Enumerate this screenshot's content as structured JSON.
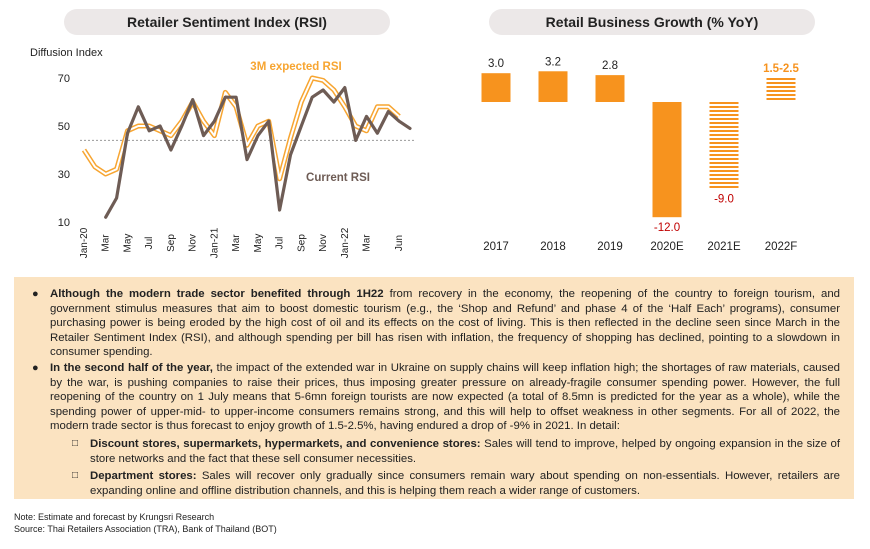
{
  "left_panel": {
    "title": "Retailer Sentiment Index (RSI)"
  },
  "right_panel": {
    "title": "Retail Business Growth (% YoY)"
  },
  "chart_data": [
    {
      "type": "line",
      "title": "Retailer Sentiment Index (RSI)",
      "ylabel": "Diffusion Index",
      "ylim": [
        10,
        75
      ],
      "yticks": [
        10,
        30,
        50,
        70
      ],
      "reference_line": 44,
      "x": [
        "Jan-20",
        "Feb-20",
        "Mar-20",
        "Apr-20",
        "May-20",
        "Jun-20",
        "Jul-20",
        "Aug-20",
        "Sep-20",
        "Oct-20",
        "Nov-20",
        "Dec-20",
        "Jan-21",
        "Feb-21",
        "Mar-21",
        "Apr-21",
        "May-21",
        "Jun-21",
        "Jul-21",
        "Aug-21",
        "Sep-21",
        "Oct-21",
        "Nov-21",
        "Dec-21",
        "Jan-22",
        "Feb-22",
        "Mar-22",
        "Apr-22",
        "May-22",
        "Jun-22",
        "Jul-22"
      ],
      "x_tick_labels": [
        "Jan-20",
        "Mar",
        "May",
        "Jul",
        "Sep",
        "Nov",
        "Jan-21",
        "Mar",
        "May",
        "Jul",
        "Sep",
        "Nov",
        "Jan-22",
        "Mar",
        "Jun"
      ],
      "series": [
        {
          "name": "3M expected RSI",
          "color": "#f7a531",
          "style": "double-line",
          "values": [
            40,
            33,
            30,
            32,
            48,
            50,
            50,
            48,
            46,
            52,
            60,
            52,
            46,
            64,
            58,
            42,
            50,
            52,
            28,
            45,
            60,
            70,
            69,
            65,
            58,
            50,
            48,
            58,
            58,
            54,
            null
          ]
        },
        {
          "name": "Current RSI",
          "color": "#6e5c55",
          "style": "solid",
          "values": [
            null,
            null,
            12,
            20,
            47,
            58,
            48,
            50,
            40,
            50,
            61,
            46,
            52,
            62,
            62,
            36,
            46,
            52,
            15,
            38,
            50,
            62,
            65,
            60,
            66,
            44,
            54,
            47,
            56,
            52,
            49
          ]
        }
      ],
      "annotations": [
        "3M expected RSI",
        "Current RSI"
      ]
    },
    {
      "type": "bar",
      "title": "Retail Business Growth (% YoY)",
      "categories": [
        "2017",
        "2018",
        "2019",
        "2020E",
        "2021E",
        "2022F"
      ],
      "values": [
        3.0,
        3.2,
        2.8,
        -12.0,
        -9.0,
        2.0
      ],
      "value_range_2022F": [
        1.5,
        2.5
      ],
      "data_labels": [
        "3.0",
        "3.2",
        "2.8",
        "-12.0",
        "-9.0",
        "1.5-2.5"
      ],
      "bar_styles": [
        "solid",
        "solid",
        "solid",
        "solid",
        "striped",
        "striped"
      ],
      "color": "#f7931e",
      "label_colors": [
        "#222222",
        "#222222",
        "#222222",
        "#c00000",
        "#c00000",
        "#f7931e"
      ]
    }
  ],
  "body_text": {
    "bullet1": {
      "lead": "Although the modern trade sector benefited through 1H22",
      "rest": " from recovery in the economy, the reopening of the country to foreign tourism, and government stimulus measures that aim to boost domestic tourism (e.g., the ‘Shop and Refund’ and phase 4 of the ‘Half Each’ programs), consumer purchasing power is being eroded by the high cost of oil and its effects on the cost of living. This is then reflected in the decline seen since March in the Retailer Sentiment Index (RSI), and although spending per bill has risen with inflation, the frequency of shopping has declined, pointing to a slowdown in consumer spending."
    },
    "bullet2": {
      "lead": "In the second half of the year,",
      "rest": " the impact of the extended war in Ukraine on supply chains will keep inflation high; the shortages of raw materials, caused by the war, is pushing companies to raise their prices, thus imposing greater pressure on already-fragile consumer spending power. However, the full reopening of the country on 1 July means that 5-6mn foreign tourists are now expected (a total of 8.5mn is predicted for the year as a whole), while the spending power of upper-mid- to upper-income consumers remains strong, and this will help to offset weakness in other segments. For all of 2022, the modern trade sector is thus forecast to enjoy growth of 1.5-2.5%, having endured a drop of -9% in 2021. In detail:"
    },
    "sub1": {
      "lead": "Discount stores, supermarkets, hypermarkets, and convenience stores:",
      "rest": " Sales will tend to improve, helped by ongoing expansion in the size of store networks and the fact that these sell consumer necessities."
    },
    "sub2": {
      "lead": "Department stores:",
      "rest": " Sales will recover only gradually since consumers remain wary about spending on non-essentials. However, retailers are expanding online and offline distribution channels, and this is helping them reach a wider range of customers."
    },
    "bullet_symbol": "●",
    "sub_symbol": "□"
  },
  "notes": {
    "note": "Note: Estimate and forecast by Krungsri Research",
    "source": "Source:  Thai Retailers Association (TRA), Bank of Thailand (BOT)"
  }
}
